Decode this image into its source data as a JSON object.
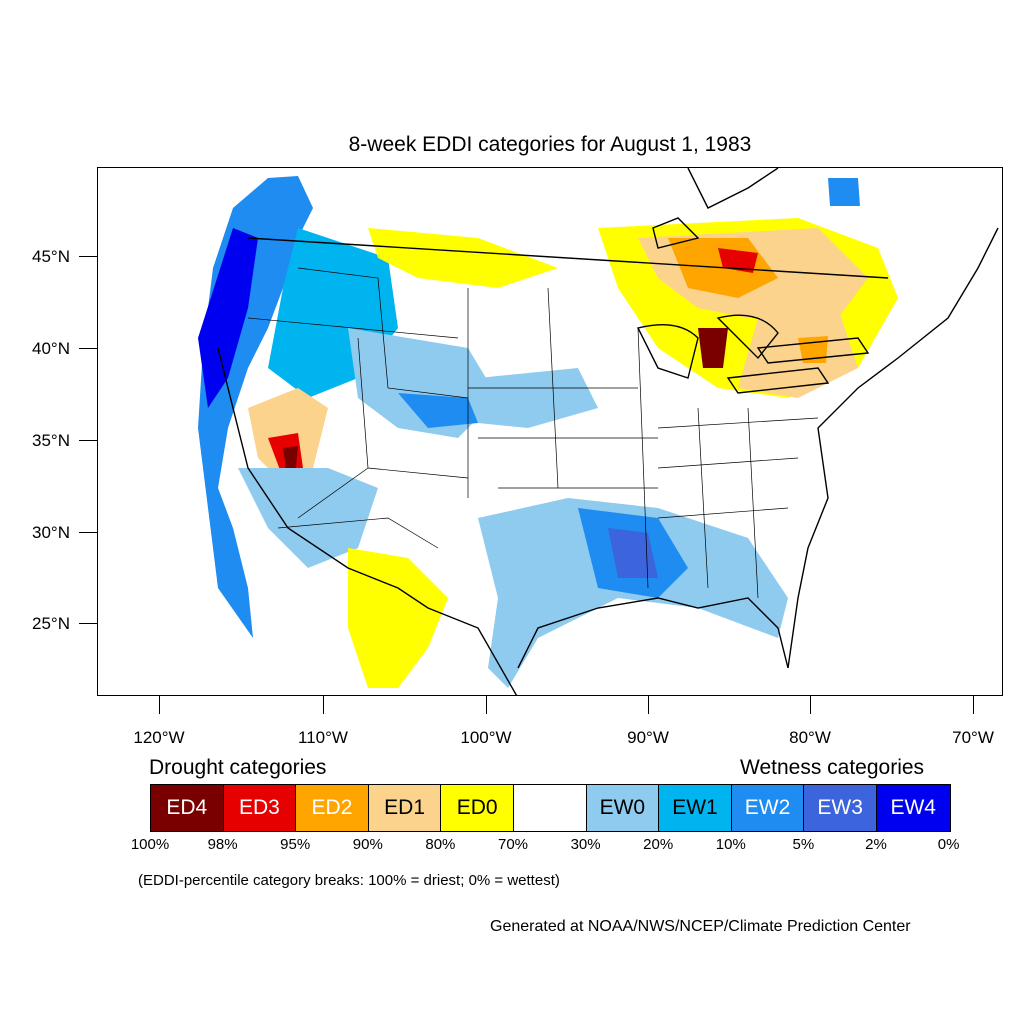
{
  "title": "8-week EDDI categories for August 1, 1983",
  "map": {
    "y_axis": [
      "45°N",
      "40°N",
      "35°N",
      "30°N",
      "25°N"
    ],
    "x_axis": [
      "120°W",
      "110°W",
      "100°W",
      "90°W",
      "80°W",
      "70°W"
    ]
  },
  "legend": {
    "drought_heading": "Drought categories",
    "wetness_heading": "Wetness categories",
    "categories": [
      {
        "label": "ED4",
        "color": "#7a0000",
        "text_color": "#ffffff"
      },
      {
        "label": "ED3",
        "color": "#e60000",
        "text_color": "#ffffff"
      },
      {
        "label": "ED2",
        "color": "#ffa500",
        "text_color": "#ffffff"
      },
      {
        "label": "ED1",
        "color": "#fcd38d",
        "text_color": "#000000"
      },
      {
        "label": "ED0",
        "color": "#ffff00",
        "text_color": "#000000"
      },
      {
        "label": "",
        "color": "#ffffff",
        "text_color": "#000000"
      },
      {
        "label": "EW0",
        "color": "#8ecbef",
        "text_color": "#000000"
      },
      {
        "label": "EW1",
        "color": "#00b4f0",
        "text_color": "#000000"
      },
      {
        "label": "EW2",
        "color": "#1e8cf0",
        "text_color": "#ffffff"
      },
      {
        "label": "EW3",
        "color": "#3c64dc",
        "text_color": "#ffffff"
      },
      {
        "label": "EW4",
        "color": "#0000f0",
        "text_color": "#ffffff"
      }
    ],
    "breaks": [
      "100%",
      "98%",
      "95%",
      "90%",
      "80%",
      "70%",
      "30%",
      "20%",
      "10%",
      "5%",
      "2%",
      "0%"
    ]
  },
  "note": "(EDDI-percentile category breaks: 100% = driest; 0% = wettest)",
  "credit": "Generated at NOAA/NWS/NCEP/Climate Prediction Center"
}
